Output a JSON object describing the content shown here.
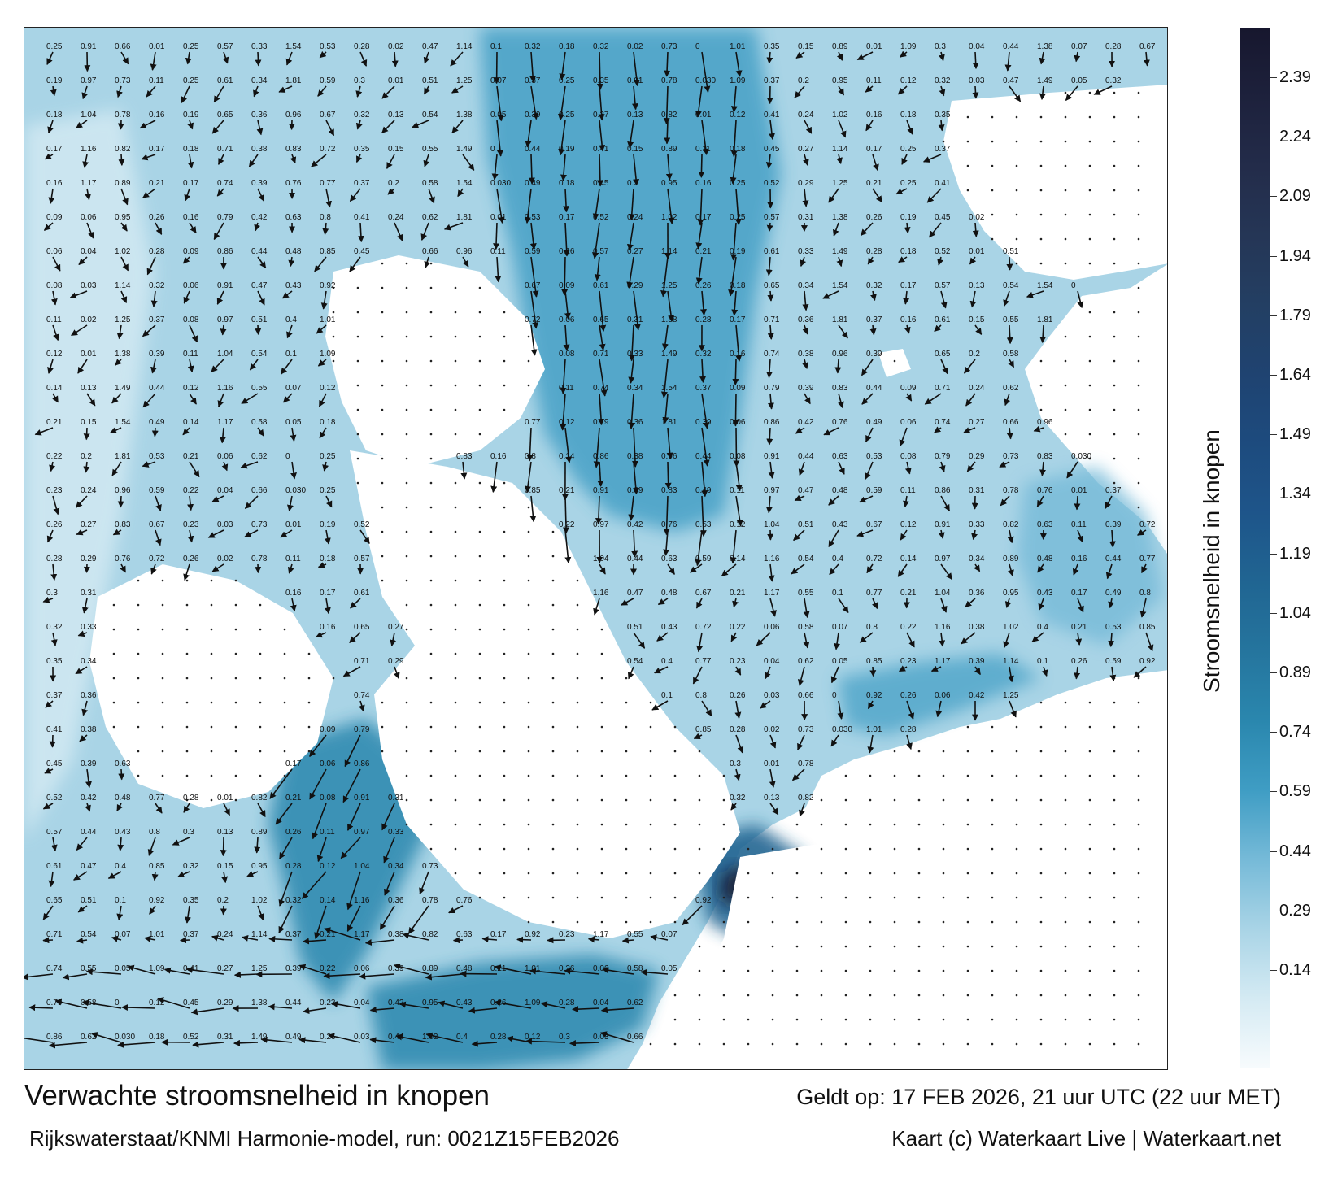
{
  "map": {
    "title": "Verwachte stroomsnelheid in knopen",
    "valid_time": "Geldt op: 17 FEB 2026, 21 uur UTC (22 uur MET)",
    "model_run": "Rijkswaterstaat/KNMI Harmonie-model, run: 0021Z15FEB2026",
    "credit": "Kaart (c) Waterkaart Live | Waterkaart.net"
  },
  "colorbar": {
    "title": "Stroomsnelheid in knopen",
    "ticks": [
      "2.39",
      "2.24",
      "2.09",
      "1.94",
      "1.79",
      "1.64",
      "1.49",
      "1.34",
      "1.19",
      "1.04",
      "0.89",
      "0.74",
      "0.59",
      "0.44",
      "0.29",
      "0.14"
    ],
    "colors": [
      "#f7fbfd",
      "#d4eaf3",
      "#a9d4e6",
      "#76bad8",
      "#3f9dc4",
      "#2a87ae",
      "#25759e",
      "#206592",
      "#1e558a",
      "#1d4b7e",
      "#1f4371",
      "#233f63",
      "#253656",
      "#232c4a",
      "#1d213c",
      "#17172e"
    ]
  },
  "current_labels": [
    {
      "v": "0.25"
    },
    {
      "v": "0.19"
    },
    {
      "v": "0.18"
    },
    {
      "v": "0.17"
    },
    {
      "v": "0.16"
    },
    {
      "v": "0.09"
    },
    {
      "v": "0.06"
    },
    {
      "v": "0.08"
    },
    {
      "v": "0.11"
    },
    {
      "v": "0.12"
    },
    {
      "v": "0.14"
    },
    {
      "v": "0.21"
    },
    {
      "v": "0.22"
    },
    {
      "v": "0.23"
    },
    {
      "v": "0.26"
    },
    {
      "v": "0.28"
    },
    {
      "v": "0.3"
    },
    {
      "v": "0.32"
    },
    {
      "v": "0.35"
    },
    {
      "v": "0.37"
    },
    {
      "v": "0.41"
    },
    {
      "v": "0.45"
    },
    {
      "v": "0.52"
    },
    {
      "v": "0.57"
    },
    {
      "v": "0.61"
    },
    {
      "v": "0.65"
    },
    {
      "v": "0.71"
    },
    {
      "v": "0.74"
    },
    {
      "v": "0.79"
    },
    {
      "v": "0.86"
    },
    {
      "v": "0.91"
    },
    {
      "v": "0.97"
    },
    {
      "v": "1.04"
    },
    {
      "v": "1.16"
    },
    {
      "v": "1.17"
    },
    {
      "v": "0.06"
    },
    {
      "v": "0.04"
    },
    {
      "v": "0.03"
    },
    {
      "v": "0.02"
    },
    {
      "v": "0.01"
    },
    {
      "v": "0.13"
    },
    {
      "v": "0.15"
    },
    {
      "v": "0.2"
    },
    {
      "v": "0.24"
    },
    {
      "v": "0.27"
    },
    {
      "v": "0.29"
    },
    {
      "v": "0.31"
    },
    {
      "v": "0.33"
    },
    {
      "v": "0.34"
    },
    {
      "v": "0.36"
    },
    {
      "v": "0.38"
    },
    {
      "v": "0.39"
    },
    {
      "v": "0.42"
    },
    {
      "v": "0.44"
    },
    {
      "v": "0.47"
    },
    {
      "v": "0.51"
    },
    {
      "v": "0.54"
    },
    {
      "v": "0.55"
    },
    {
      "v": "0.58"
    },
    {
      "v": "0.62"
    },
    {
      "v": "0.66"
    },
    {
      "v": "0.73"
    },
    {
      "v": "0.78"
    },
    {
      "v": "0.82"
    },
    {
      "v": "0.89"
    },
    {
      "v": "0.95"
    },
    {
      "v": "1.02"
    },
    {
      "v": "1.14"
    },
    {
      "v": "1.25"
    },
    {
      "v": "1.38"
    },
    {
      "v": "1.49"
    },
    {
      "v": "1.54"
    },
    {
      "v": "1.81"
    },
    {
      "v": "0.96"
    },
    {
      "v": "0.83"
    },
    {
      "v": "0.76"
    },
    {
      "v": "0.63"
    },
    {
      "v": "0.48"
    },
    {
      "v": "0.43"
    },
    {
      "v": "0.4"
    },
    {
      "v": "0.1"
    },
    {
      "v": "0.07"
    },
    {
      "v": "0.05"
    },
    {
      "v": "0"
    },
    {
      "v": "0.030"
    },
    {
      "v": "0.01"
    },
    {
      "v": "0.11"
    },
    {
      "v": "0.16"
    },
    {
      "v": "0.17"
    },
    {
      "v": "0.21"
    },
    {
      "v": "0.26"
    },
    {
      "v": "0.28"
    },
    {
      "v": "0.32"
    },
    {
      "v": "0.37"
    },
    {
      "v": "0.39"
    },
    {
      "v": "0.44"
    },
    {
      "v": "0.49"
    },
    {
      "v": "0.53"
    },
    {
      "v": "0.59"
    },
    {
      "v": "0.67"
    },
    {
      "v": "0.72"
    },
    {
      "v": "0.77"
    },
    {
      "v": "0.8"
    },
    {
      "v": "0.85"
    },
    {
      "v": "0.92"
    },
    {
      "v": "1.01"
    },
    {
      "v": "1.09"
    },
    {
      "v": "0.12"
    },
    {
      "v": "0.18"
    },
    {
      "v": "0.25"
    }
  ]
}
